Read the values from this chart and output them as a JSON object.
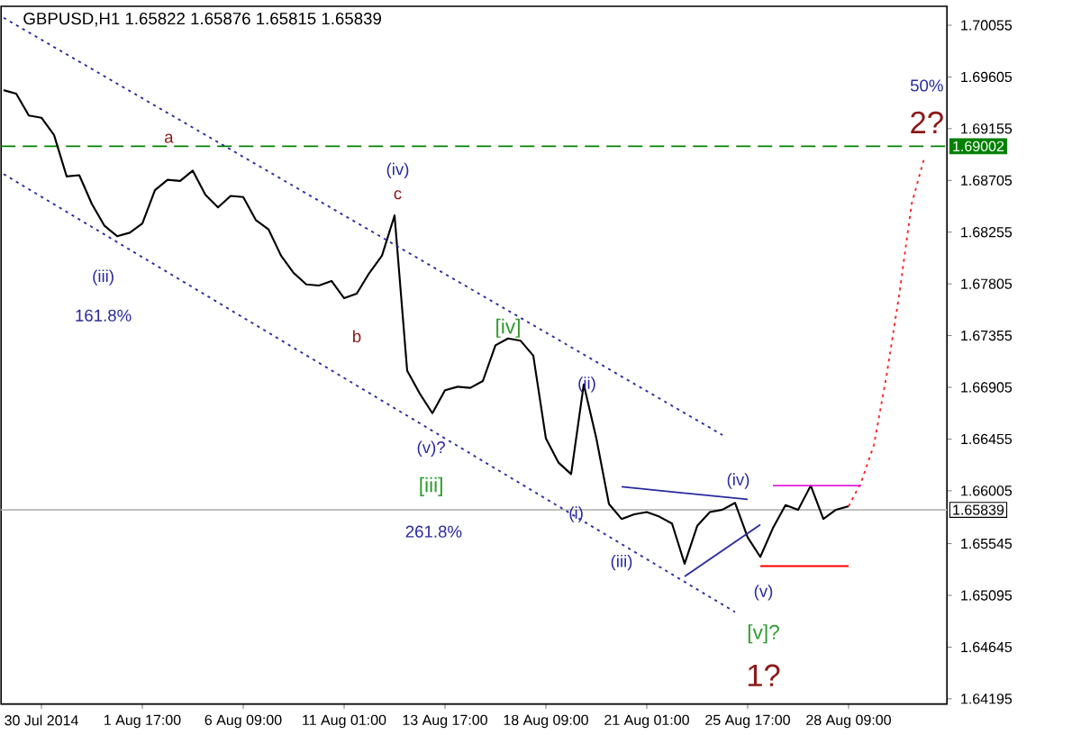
{
  "chart_data": {
    "type": "line",
    "title": "GBPUSD,H1  1.65822 1.65876 1.65815 1.65839",
    "categories": [
      null,
      null,
      null,
      "30 Jul 2014",
      null,
      null,
      null,
      null,
      null,
      null,
      null,
      "1 Aug 17:00",
      null,
      null,
      null,
      null,
      null,
      null,
      null,
      "6 Aug 09:00",
      null,
      null,
      null,
      null,
      null,
      null,
      null,
      "11 Aug 01:00",
      null,
      null,
      null,
      null,
      null,
      null,
      null,
      "13 Aug 17:00",
      null,
      null,
      null,
      null,
      null,
      null,
      null,
      "18 Aug 09:00",
      null,
      null,
      null,
      null,
      null,
      null,
      null,
      "21 Aug 01:00",
      null,
      null,
      null,
      null,
      null,
      null,
      null,
      "25 Aug 17:00",
      null,
      null,
      null,
      null,
      null,
      null,
      null,
      "28 Aug 09:00",
      null,
      null,
      null,
      null,
      null,
      null,
      null
    ],
    "ylim": [
      1.6415,
      1.7022
    ],
    "yticks": [
      1.70055,
      1.69605,
      1.69155,
      1.68705,
      1.68255,
      1.67805,
      1.67355,
      1.66905,
      1.66455,
      1.66005,
      1.65545,
      1.65095,
      1.64645,
      1.64195
    ],
    "grid": false,
    "series": [
      {
        "color": "#000000",
        "line_style": "solid",
        "values": [
          1.6949,
          1.6946,
          1.6927,
          1.6925,
          1.691,
          1.6874,
          1.6875,
          1.685,
          1.6831,
          1.6822,
          1.6825,
          1.6833,
          1.6862,
          1.6871,
          1.687,
          1.6879,
          1.6858,
          1.6847,
          1.6857,
          1.6856,
          1.6836,
          1.6828,
          1.6805,
          1.679,
          1.678,
          1.6779,
          1.6783,
          1.6768,
          1.6772,
          1.679,
          1.6805,
          1.684,
          1.6705,
          1.6685,
          1.6668,
          1.6688,
          1.6691,
          1.669,
          1.6696,
          1.6727,
          1.6733,
          1.6731,
          1.6718,
          1.6646,
          1.6625,
          1.6615,
          1.6693,
          1.6646,
          1.6589,
          1.6576,
          1.658,
          1.6582,
          1.6578,
          1.6572,
          1.6537,
          1.657,
          1.6582,
          1.6584,
          1.659,
          1.656,
          1.6543,
          1.6568,
          1.6588,
          1.6584,
          1.6605,
          1.6576,
          1.6584,
          1.6587,
          null,
          null,
          null,
          null,
          null,
          null,
          null
        ]
      },
      {
        "color": "#ff2020",
        "line_style": "dotted",
        "values": [
          null,
          null,
          null,
          null,
          null,
          null,
          null,
          null,
          null,
          null,
          null,
          null,
          null,
          null,
          null,
          null,
          null,
          null,
          null,
          null,
          null,
          null,
          null,
          null,
          null,
          null,
          null,
          null,
          null,
          null,
          null,
          null,
          null,
          null,
          null,
          null,
          null,
          null,
          null,
          null,
          null,
          null,
          null,
          null,
          null,
          null,
          null,
          null,
          null,
          null,
          null,
          null,
          null,
          null,
          null,
          null,
          null,
          null,
          null,
          null,
          null,
          null,
          null,
          null,
          null,
          null,
          null,
          1.6587,
          1.6608,
          1.664,
          1.67,
          1.677,
          1.685,
          1.689,
          null
        ]
      },
      {
        "color": "#2a2aa0",
        "line_style": "dotted",
        "values": [
          1.7012,
          null,
          null,
          null,
          null,
          null,
          null,
          null,
          null,
          null,
          null,
          null,
          null,
          null,
          null,
          null,
          null,
          null,
          null,
          null,
          null,
          null,
          null,
          null,
          null,
          null,
          null,
          null,
          null,
          null,
          null,
          null,
          null,
          null,
          null,
          null,
          null,
          null,
          null,
          null,
          null,
          null,
          null,
          null,
          null,
          null,
          null,
          null,
          null,
          null,
          null,
          null,
          null,
          null,
          null,
          null,
          null,
          1.6649,
          null,
          null,
          null,
          null,
          null,
          null,
          null,
          null,
          null,
          null,
          null,
          null,
          null,
          null,
          null,
          null,
          null
        ]
      },
      {
        "color": "#2a2aa0",
        "line_style": "dotted",
        "values": [
          1.6876,
          null,
          null,
          null,
          null,
          null,
          null,
          null,
          null,
          null,
          null,
          null,
          null,
          null,
          null,
          null,
          null,
          null,
          null,
          null,
          null,
          null,
          null,
          null,
          null,
          null,
          null,
          null,
          null,
          null,
          null,
          null,
          null,
          null,
          null,
          null,
          null,
          null,
          null,
          null,
          null,
          null,
          null,
          null,
          null,
          null,
          null,
          null,
          null,
          null,
          null,
          null,
          null,
          null,
          null,
          null,
          null,
          null,
          1.6495,
          null,
          null,
          null,
          null,
          null,
          null,
          null,
          null,
          null,
          null,
          null,
          null,
          null,
          null,
          null,
          null
        ]
      },
      {
        "color": "#2a2aa0",
        "line_style": "solid",
        "values": [
          null,
          null,
          null,
          null,
          null,
          null,
          null,
          null,
          null,
          null,
          null,
          null,
          null,
          null,
          null,
          null,
          null,
          null,
          null,
          null,
          null,
          null,
          null,
          null,
          null,
          null,
          null,
          null,
          null,
          null,
          null,
          null,
          null,
          null,
          null,
          null,
          null,
          null,
          null,
          null,
          null,
          null,
          null,
          null,
          null,
          null,
          null,
          null,
          null,
          1.6604,
          null,
          null,
          null,
          null,
          null,
          null,
          null,
          null,
          null,
          1.6593,
          null,
          null,
          null,
          null,
          null,
          null,
          null,
          null,
          null,
          null,
          null,
          null,
          null,
          null,
          null
        ]
      },
      {
        "color": "#2a2aa0",
        "line_style": "solid",
        "values": [
          null,
          null,
          null,
          null,
          null,
          null,
          null,
          null,
          null,
          null,
          null,
          null,
          null,
          null,
          null,
          null,
          null,
          null,
          null,
          null,
          null,
          null,
          null,
          null,
          null,
          null,
          null,
          null,
          null,
          null,
          null,
          null,
          null,
          null,
          null,
          null,
          null,
          null,
          null,
          null,
          null,
          null,
          null,
          null,
          null,
          null,
          null,
          null,
          null,
          null,
          null,
          null,
          null,
          null,
          1.6526,
          null,
          null,
          null,
          null,
          null,
          1.6571,
          null,
          null,
          null,
          null,
          null,
          null,
          null,
          null,
          null,
          null,
          null,
          null,
          null,
          null
        ]
      },
      {
        "color": "#e020e0",
        "line_style": "solid",
        "values": [
          null,
          null,
          null,
          null,
          null,
          null,
          null,
          null,
          null,
          null,
          null,
          null,
          null,
          null,
          null,
          null,
          null,
          null,
          null,
          null,
          null,
          null,
          null,
          null,
          null,
          null,
          null,
          null,
          null,
          null,
          null,
          null,
          null,
          null,
          null,
          null,
          null,
          null,
          null,
          null,
          null,
          null,
          null,
          null,
          null,
          null,
          null,
          null,
          null,
          null,
          null,
          null,
          null,
          null,
          null,
          null,
          null,
          null,
          null,
          null,
          null,
          1.6605,
          null,
          null,
          null,
          null,
          null,
          null,
          1.6605,
          null,
          null,
          null,
          null,
          null,
          null
        ]
      },
      {
        "color": "#ff0000",
        "line_style": "solid",
        "values": [
          null,
          null,
          null,
          null,
          null,
          null,
          null,
          null,
          null,
          null,
          null,
          null,
          null,
          null,
          null,
          null,
          null,
          null,
          null,
          null,
          null,
          null,
          null,
          null,
          null,
          null,
          null,
          null,
          null,
          null,
          null,
          null,
          null,
          null,
          null,
          null,
          null,
          null,
          null,
          null,
          null,
          null,
          null,
          null,
          null,
          null,
          null,
          null,
          null,
          null,
          null,
          null,
          null,
          null,
          null,
          null,
          null,
          null,
          null,
          null,
          1.6535,
          null,
          null,
          null,
          null,
          null,
          null,
          1.6535,
          null,
          null,
          null,
          null,
          null,
          null,
          null
        ]
      }
    ],
    "ref_lines": [
      {
        "axis": "y",
        "value": 1.69002,
        "label": "1.69002",
        "color": "#008000",
        "line_style": "dashed"
      },
      {
        "axis": "y",
        "value": 1.65839,
        "label": "1.65839",
        "color": "#c0c0c0",
        "line_style": "solid"
      }
    ],
    "annotations": [
      "a",
      "b",
      "c",
      "(iv)",
      "(iii)",
      "161.8%",
      "(v)?",
      "[iii]",
      "261.8%",
      "[iv]",
      "(ii)",
      "(i)",
      "(iii)",
      "(iv)",
      "(v)",
      "[v]?",
      "1?",
      "50%",
      "2?"
    ]
  }
}
